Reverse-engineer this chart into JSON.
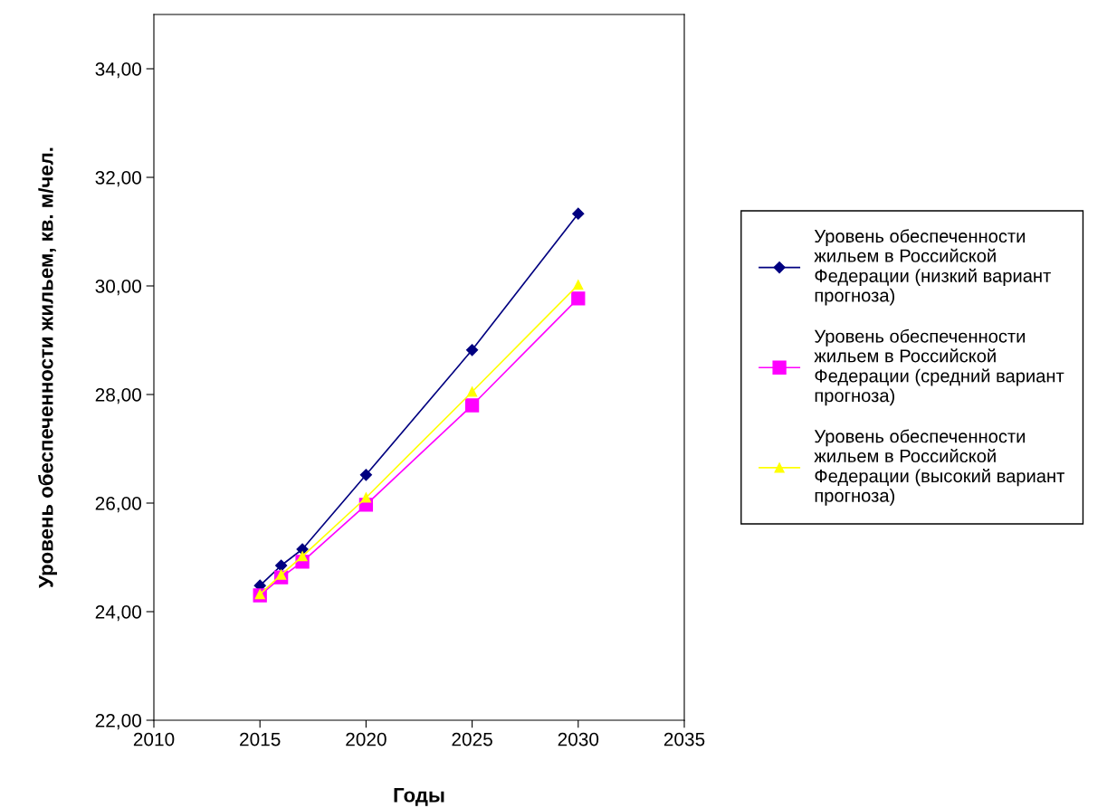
{
  "chart_data": {
    "type": "line",
    "xlabel": "Годы",
    "ylabel": "Уровень обеспеченности жильем, кв. м/чел.",
    "xlim": [
      2010,
      2035
    ],
    "xticks": [
      2010,
      2015,
      2020,
      2025,
      2030,
      2035
    ],
    "ylim": [
      22,
      35
    ],
    "yticks": [
      {
        "value": 22,
        "label": "22,00"
      },
      {
        "value": 24,
        "label": "24,00"
      },
      {
        "value": 26,
        "label": "26,00"
      },
      {
        "value": 28,
        "label": "28,00"
      },
      {
        "value": 30,
        "label": "30,00"
      },
      {
        "value": 32,
        "label": "32,00"
      },
      {
        "value": 34,
        "label": "34,00"
      }
    ],
    "x": [
      2015,
      2016,
      2017,
      2020,
      2025,
      2030
    ],
    "series": [
      {
        "name": "Уровень обеспеченности\nжильем в Российской\nФедерации (низкий вариант\nпрогноза)",
        "color": "#000080",
        "marker": "diamond",
        "values": [
          24.48,
          24.85,
          25.15,
          26.52,
          28.82,
          31.33
        ]
      },
      {
        "name": "Уровень обеспеченности\nжильем в Российской\nФедерации (средний вариант\nпрогноза)",
        "color": "#ff00ff",
        "marker": "square",
        "values": [
          24.3,
          24.63,
          24.92,
          25.97,
          27.8,
          29.77
        ]
      },
      {
        "name": "Уровень обеспеченности\nжильем в Российской\nФедерации (высокий вариант\nпрогноза)",
        "color": "#ffff00",
        "marker": "triangle",
        "values": [
          24.32,
          24.68,
          25.02,
          26.1,
          28.05,
          30.02
        ]
      }
    ],
    "grid": false,
    "legend": "right"
  }
}
